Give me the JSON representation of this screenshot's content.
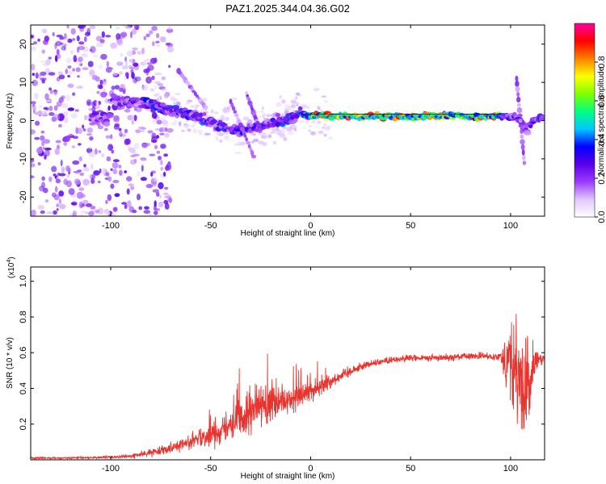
{
  "chart_data": [
    {
      "type": "heatmap",
      "title": "PAZ1.2025.344.04.36.G02",
      "xlabel": "Height of straight line (km)",
      "ylabel": "Frequency (Hz)",
      "xlim": [
        -140,
        117
      ],
      "ylim": [
        -25,
        25
      ],
      "xticks": [
        -100,
        -50,
        0,
        50,
        100
      ],
      "xtick_labels": [
        "-100",
        "-50",
        "0",
        "50",
        "100"
      ],
      "yticks": [
        -20,
        -10,
        0,
        10,
        20
      ],
      "ytick_labels": [
        "-20",
        "-10",
        "0",
        "10",
        "20"
      ],
      "colorbar": {
        "label": "Normalized spectral amplitude",
        "range": [
          0,
          1
        ],
        "ticks": [
          0.0,
          0.2,
          0.4,
          0.6,
          0.8
        ],
        "tick_labels": [
          "0.0",
          "0.2",
          "0.4",
          "0.6",
          "0.8"
        ],
        "colors": [
          "#ffffff",
          "#e0c8ff",
          "#9b3bff",
          "#5a00e6",
          "#0000ff",
          "#00c8ff",
          "#00ff80",
          "#80ff00",
          "#ffff00",
          "#ff8000",
          "#ff0000",
          "#ff00a0"
        ]
      },
      "ridge": {
        "description_points_km_hz": [
          [
            -100,
            5
          ],
          [
            -85,
            5
          ],
          [
            -75,
            3.5
          ],
          [
            -65,
            2
          ],
          [
            -55,
            0.5
          ],
          [
            -45,
            -1.5
          ],
          [
            -35,
            -2.5
          ],
          [
            -25,
            -1.5
          ],
          [
            -15,
            0
          ],
          [
            -5,
            2
          ],
          [
            0,
            1.2
          ],
          [
            50,
            1
          ],
          [
            90,
            1.2
          ],
          [
            100,
            1
          ],
          [
            105,
            0
          ],
          [
            108,
            -3
          ],
          [
            112,
            0.5
          ],
          [
            117,
            0.8
          ]
        ],
        "strong_segment_km": [
          0,
          95
        ],
        "strong_segment_value": 0.95
      }
    },
    {
      "type": "line",
      "xlabel": "Height of straight line (km)",
      "ylabel": "SNR (10 * v/v)",
      "y_scale_label": "(x10",
      "y_scale_exponent": "4",
      "xlim": [
        -140,
        117
      ],
      "ylim": [
        0.0,
        1.08
      ],
      "xticks": [
        -100,
        -50,
        0,
        50,
        100
      ],
      "xtick_labels": [
        "-100",
        "-50",
        "0",
        "50",
        "100"
      ],
      "yticks": [
        0.2,
        0.4,
        0.6,
        0.8,
        1.0
      ],
      "ytick_labels": [
        "0.2",
        "0.4",
        "0.6",
        "0.8",
        "1.0"
      ],
      "line_color": "#e8332e",
      "envelope": {
        "x": [
          -140,
          -120,
          -100,
          -90,
          -80,
          -70,
          -60,
          -50,
          -40,
          -30,
          -20,
          -10,
          0,
          10,
          20,
          30,
          40,
          50,
          60,
          70,
          80,
          90,
          95,
          100,
          104,
          108,
          112,
          117
        ],
        "mean": [
          0.01,
          0.01,
          0.015,
          0.02,
          0.04,
          0.07,
          0.1,
          0.14,
          0.2,
          0.26,
          0.3,
          0.33,
          0.38,
          0.44,
          0.5,
          0.54,
          0.56,
          0.57,
          0.57,
          0.575,
          0.58,
          0.58,
          0.58,
          0.55,
          0.45,
          0.35,
          0.55,
          0.57
        ],
        "noise": [
          0.005,
          0.005,
          0.008,
          0.012,
          0.02,
          0.03,
          0.04,
          0.06,
          0.1,
          0.12,
          0.12,
          0.08,
          0.06,
          0.04,
          0.03,
          0.02,
          0.02,
          0.02,
          0.02,
          0.02,
          0.02,
          0.02,
          0.03,
          0.3,
          0.35,
          0.3,
          0.08,
          0.02
        ]
      }
    }
  ]
}
